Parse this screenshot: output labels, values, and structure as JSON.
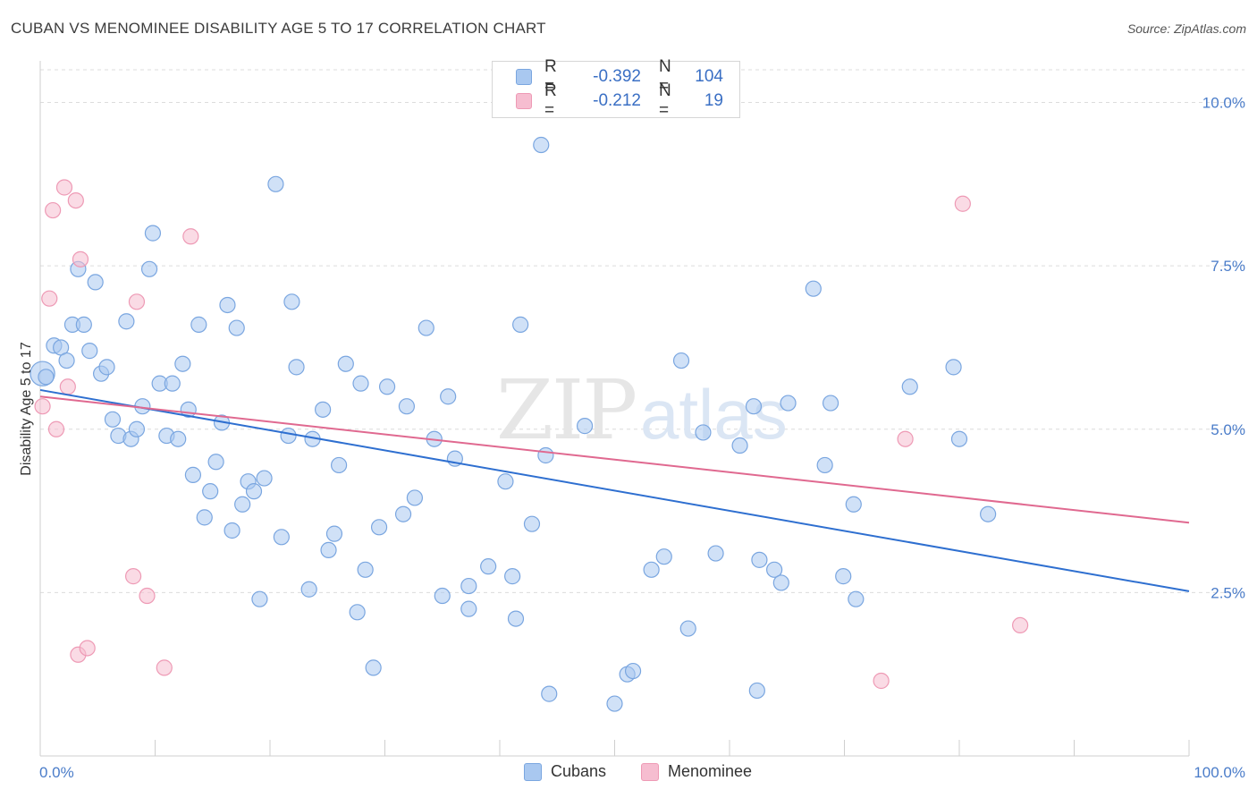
{
  "header": {
    "title": "CUBAN VS MENOMINEE DISABILITY AGE 5 TO 17 CORRELATION CHART",
    "source": "Source: ZipAtlas.com"
  },
  "legend": {
    "rows": [
      {
        "r_label": "R =",
        "r_value": "-0.392",
        "n_label": "N =",
        "n_value": "104"
      },
      {
        "r_label": "R =",
        "r_value": "-0.212",
        "n_label": "N =",
        "n_value": "19"
      }
    ]
  },
  "bottom_legend": [
    "Cubans",
    "Menominee"
  ],
  "colors": {
    "cubans_fill": "#a9c8f0",
    "cubans_stroke": "#7aa6e0",
    "cubans_line": "#2e6fd0",
    "menominee_fill": "#f6bdd0",
    "menominee_stroke": "#ee9ab5",
    "menominee_line": "#e06990",
    "tick_text": "#4a7cc9"
  },
  "chart_data": {
    "type": "scatter",
    "title": "CUBAN VS MENOMINEE DISABILITY AGE 5 TO 17 CORRELATION CHART",
    "xlabel": "",
    "ylabel": "Disability Age 5 to 17",
    "xlim": [
      0,
      100
    ],
    "ylim": [
      0,
      10.5
    ],
    "x_tick_labels": [
      "0.0%",
      "100.0%"
    ],
    "y_ticks": [
      2.5,
      5.0,
      7.5,
      10.0
    ],
    "y_tick_labels": [
      "2.5%",
      "5.0%",
      "7.5%",
      "10.0%"
    ],
    "grid": true,
    "legend_position": "top-center",
    "watermark": "ZIPatlas",
    "series": [
      {
        "name": "Cubans",
        "trend": {
          "x": [
            0,
            100
          ],
          "y": [
            5.6,
            2.52
          ]
        },
        "points": [
          [
            0.2,
            5.85,
            1.6
          ],
          [
            0.5,
            5.8,
            1.0
          ],
          [
            1.2,
            6.28,
            1.0
          ],
          [
            1.8,
            6.25,
            1.0
          ],
          [
            2.3,
            6.05,
            1.0
          ],
          [
            2.8,
            6.6,
            1.0
          ],
          [
            3.3,
            7.45,
            1.0
          ],
          [
            3.8,
            6.6,
            1.0
          ],
          [
            4.3,
            6.2,
            1.0
          ],
          [
            4.8,
            7.25,
            1.0
          ],
          [
            5.3,
            5.85,
            1.0
          ],
          [
            5.8,
            5.95,
            1.0
          ],
          [
            6.3,
            5.15,
            1.0
          ],
          [
            6.8,
            4.9,
            1.0
          ],
          [
            7.5,
            6.65,
            1.0
          ],
          [
            7.9,
            4.85,
            1.0
          ],
          [
            8.4,
            5.0,
            1.0
          ],
          [
            8.9,
            5.35,
            1.0
          ],
          [
            9.5,
            7.45,
            1.0
          ],
          [
            9.8,
            8.0,
            1.0
          ],
          [
            10.4,
            5.7,
            1.0
          ],
          [
            11.0,
            4.9,
            1.0
          ],
          [
            11.5,
            5.7,
            1.0
          ],
          [
            12.0,
            4.85,
            1.0
          ],
          [
            12.4,
            6.0,
            1.0
          ],
          [
            12.9,
            5.3,
            1.0
          ],
          [
            13.3,
            4.3,
            1.0
          ],
          [
            13.8,
            6.6,
            1.0
          ],
          [
            14.3,
            3.65,
            1.0
          ],
          [
            14.8,
            4.05,
            1.0
          ],
          [
            15.3,
            4.5,
            1.0
          ],
          [
            15.8,
            5.1,
            1.0
          ],
          [
            16.3,
            6.9,
            1.0
          ],
          [
            16.7,
            3.45,
            1.0
          ],
          [
            17.1,
            6.55,
            1.0
          ],
          [
            17.6,
            3.85,
            1.0
          ],
          [
            18.1,
            4.2,
            1.0
          ],
          [
            18.6,
            4.05,
            1.0
          ],
          [
            19.1,
            2.4,
            1.0
          ],
          [
            19.5,
            4.25,
            1.0
          ],
          [
            20.5,
            8.75,
            1.0
          ],
          [
            21.0,
            3.35,
            1.0
          ],
          [
            21.6,
            4.9,
            1.0
          ],
          [
            21.9,
            6.95,
            1.0
          ],
          [
            22.3,
            5.95,
            1.0
          ],
          [
            23.4,
            2.55,
            1.0
          ],
          [
            23.7,
            4.85,
            1.0
          ],
          [
            24.6,
            5.3,
            1.0
          ],
          [
            25.1,
            3.15,
            1.0
          ],
          [
            25.6,
            3.4,
            1.0
          ],
          [
            26.0,
            4.45,
            1.0
          ],
          [
            26.6,
            6.0,
            1.0
          ],
          [
            27.6,
            2.2,
            1.0
          ],
          [
            27.9,
            5.7,
            1.0
          ],
          [
            28.3,
            2.85,
            1.0
          ],
          [
            29.0,
            1.35,
            1.0
          ],
          [
            29.5,
            3.5,
            1.0
          ],
          [
            30.2,
            5.65,
            1.0
          ],
          [
            31.6,
            3.7,
            1.0
          ],
          [
            31.9,
            5.35,
            1.0
          ],
          [
            32.6,
            3.95,
            1.0
          ],
          [
            33.6,
            6.55,
            1.0
          ],
          [
            34.3,
            4.85,
            1.0
          ],
          [
            35.0,
            2.45,
            1.0
          ],
          [
            35.5,
            5.5,
            1.0
          ],
          [
            36.1,
            4.55,
            1.0
          ],
          [
            37.3,
            2.6,
            1.0
          ],
          [
            37.3,
            2.25,
            1.0
          ],
          [
            39.0,
            2.9,
            1.0
          ],
          [
            40.5,
            4.2,
            1.0
          ],
          [
            41.1,
            2.75,
            1.0
          ],
          [
            41.4,
            2.1,
            1.0
          ],
          [
            41.8,
            6.6,
            1.0
          ],
          [
            42.8,
            3.55,
            1.0
          ],
          [
            43.6,
            9.35,
            1.0
          ],
          [
            44.0,
            4.6,
            1.0
          ],
          [
            44.3,
            0.95,
            1.0
          ],
          [
            47.4,
            5.05,
            1.0
          ],
          [
            50.0,
            0.8,
            1.0
          ],
          [
            51.1,
            1.25,
            1.0
          ],
          [
            51.6,
            1.3,
            1.0
          ],
          [
            53.2,
            2.85,
            1.0
          ],
          [
            54.3,
            3.05,
            1.0
          ],
          [
            55.8,
            6.05,
            1.0
          ],
          [
            56.4,
            1.95,
            1.0
          ],
          [
            57.7,
            4.95,
            1.0
          ],
          [
            58.8,
            3.1,
            1.0
          ],
          [
            60.9,
            4.75,
            1.0
          ],
          [
            62.1,
            5.35,
            1.0
          ],
          [
            62.4,
            1.0,
            1.0
          ],
          [
            62.6,
            3.0,
            1.0
          ],
          [
            63.9,
            2.85,
            1.0
          ],
          [
            64.5,
            2.65,
            1.0
          ],
          [
            65.1,
            5.4,
            1.0
          ],
          [
            67.3,
            7.15,
            1.0
          ],
          [
            68.3,
            4.45,
            1.0
          ],
          [
            68.8,
            5.4,
            1.0
          ],
          [
            69.9,
            2.75,
            1.0
          ],
          [
            70.8,
            3.85,
            1.0
          ],
          [
            71.0,
            2.4,
            1.0
          ],
          [
            75.7,
            5.65,
            1.0
          ],
          [
            79.5,
            5.95,
            1.0
          ],
          [
            80.0,
            4.85,
            1.0
          ],
          [
            82.5,
            3.7,
            1.0
          ]
        ]
      },
      {
        "name": "Menominee",
        "trend": {
          "x": [
            0,
            100
          ],
          "y": [
            5.5,
            3.57
          ]
        },
        "points": [
          [
            0.2,
            5.35
          ],
          [
            0.8,
            7.0
          ],
          [
            1.1,
            8.35
          ],
          [
            1.4,
            5.0
          ],
          [
            2.1,
            8.7
          ],
          [
            2.4,
            5.65
          ],
          [
            3.1,
            8.5
          ],
          [
            3.3,
            1.55
          ],
          [
            3.5,
            7.6
          ],
          [
            4.1,
            1.65
          ],
          [
            8.1,
            2.75
          ],
          [
            8.4,
            6.95
          ],
          [
            9.3,
            2.45
          ],
          [
            10.8,
            1.35
          ],
          [
            13.1,
            7.95
          ],
          [
            73.2,
            1.15
          ],
          [
            75.3,
            4.85
          ],
          [
            80.3,
            8.45
          ],
          [
            85.3,
            2.0
          ]
        ]
      }
    ]
  }
}
